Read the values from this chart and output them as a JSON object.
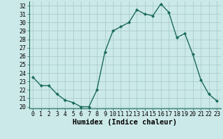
{
  "x": [
    0,
    1,
    2,
    3,
    4,
    5,
    6,
    7,
    8,
    9,
    10,
    11,
    12,
    13,
    14,
    15,
    16,
    17,
    18,
    19,
    20,
    21,
    22,
    23
  ],
  "y": [
    23.5,
    22.5,
    22.5,
    21.5,
    20.8,
    20.5,
    20.0,
    20.0,
    22.0,
    26.5,
    29.0,
    29.5,
    30.0,
    31.5,
    31.0,
    30.8,
    32.2,
    31.2,
    28.2,
    28.7,
    26.2,
    23.2,
    21.5,
    20.7
  ],
  "line_color": "#1a6b5a",
  "marker": "D",
  "marker_size": 2.0,
  "line_width": 1.0,
  "xlabel": "Humidex (Indice chaleur)",
  "xlabel_fontsize": 7.5,
  "bg_color": "#cce9e9",
  "grid_color": "#aacccc",
  "xlim": [
    -0.5,
    23.5
  ],
  "ylim": [
    19.8,
    32.5
  ],
  "yticks": [
    20,
    21,
    22,
    23,
    24,
    25,
    26,
    27,
    28,
    29,
    30,
    31,
    32
  ],
  "xticks": [
    0,
    1,
    2,
    3,
    4,
    5,
    6,
    7,
    8,
    9,
    10,
    11,
    12,
    13,
    14,
    15,
    16,
    17,
    18,
    19,
    20,
    21,
    22,
    23
  ],
  "tick_fontsize": 6.0
}
